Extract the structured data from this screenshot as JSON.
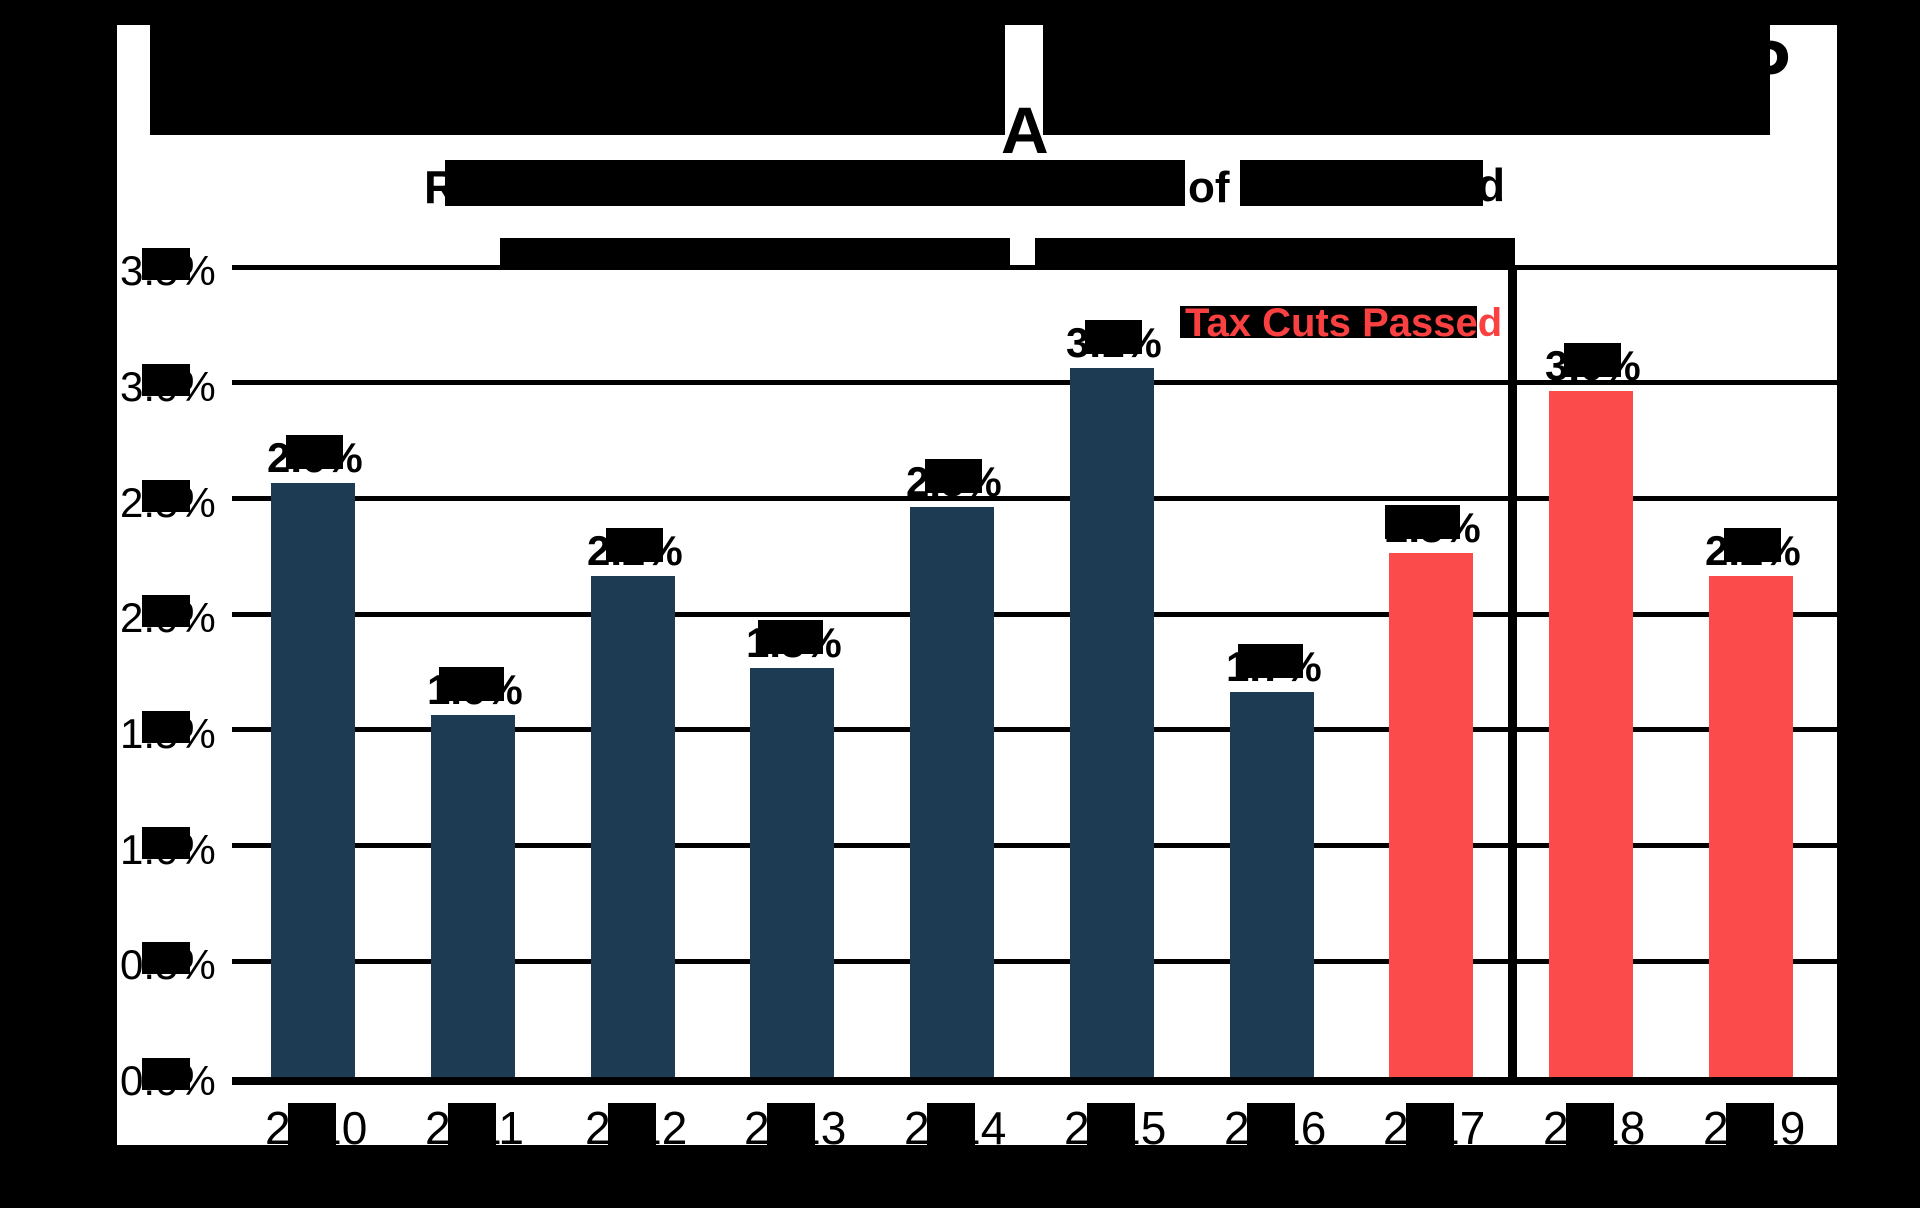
{
  "page": {
    "background": "#000000"
  },
  "figure": {
    "background": "#ffffff"
  },
  "header": {
    "title_line1": {
      "redacted": true,
      "visible_fragment_end": "P"
    },
    "title_line2": {
      "redacted": true,
      "visible_fragment": "A"
    },
    "subtitle_line1": {
      "redacted": true,
      "fragment_start": "R",
      "fragment_middle": "of",
      "fragment_end": "d"
    },
    "subtitle_line2": {
      "redacted": true
    }
  },
  "annotation": {
    "text": "Tax Cuts Passed",
    "color": "#fa4040"
  },
  "chart_data": {
    "type": "bar",
    "categories": [
      "2010",
      "2011",
      "2012",
      "2013",
      "2014",
      "2015",
      "2016",
      "2017",
      "2018",
      "2019"
    ],
    "values": [
      2.6,
      1.6,
      2.2,
      1.8,
      2.5,
      3.1,
      1.7,
      2.3,
      3.0,
      2.2
    ],
    "bar_labels": [
      "2.6%",
      "1.6%",
      "2.2%",
      "1.8%",
      "2.5%",
      "3.1%",
      "1.7%",
      "2.3%",
      "3.0%",
      "2.2%"
    ],
    "bar_colors": [
      "#1d3c53",
      "#1d3c53",
      "#1d3c53",
      "#1d3c53",
      "#1d3c53",
      "#1d3c53",
      "#1d3c53",
      "#fb4b4b",
      "#fb4b4b",
      "#fb4b4b"
    ],
    "before_color": "#1d3c53",
    "after_color": "#fb4b4b",
    "after_tax_cut_years": [
      "2017",
      "2018",
      "2019"
    ],
    "ylim": [
      0,
      3.5
    ],
    "yticks": [
      "0.0%",
      "0.5%",
      "1.0%",
      "1.5%",
      "2.0%",
      "2.5%",
      "3.0%",
      "3.5%"
    ],
    "grid": true,
    "divider_between": [
      "2017",
      "2018"
    ],
    "annotation_text": "Tax Cuts Passed",
    "title": "(redacted by black bars)",
    "labels_partially_redacted": true
  },
  "colors": {
    "navy": "#1d3c53",
    "red": "#fb4b4b",
    "grid": "#000000",
    "annotation_red": "#fa4040"
  }
}
